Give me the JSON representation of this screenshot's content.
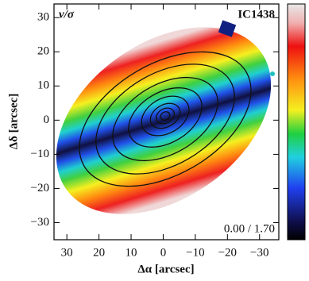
{
  "chart_data": {
    "type": "map",
    "title": "v/σ",
    "label": "IC1438",
    "colorbar_label": "0.00 / 1.70",
    "x_label": "Δα [arcsec]",
    "y_label": "Δδ [arcsec]",
    "xlim": [
      34,
      -36
    ],
    "ylim": [
      -35,
      34
    ],
    "xticks": [
      30,
      20,
      10,
      0,
      {
        "value": -10,
        "label": "−10"
      },
      {
        "value": -20,
        "label": "−20"
      },
      {
        "value": -30,
        "label": "−30"
      }
    ],
    "yticks": [
      {
        "value": -30,
        "label": "−30"
      },
      {
        "value": -20,
        "label": "−20"
      },
      {
        "value": -10,
        "label": "−10"
      },
      0,
      10,
      20,
      30
    ]
  }
}
